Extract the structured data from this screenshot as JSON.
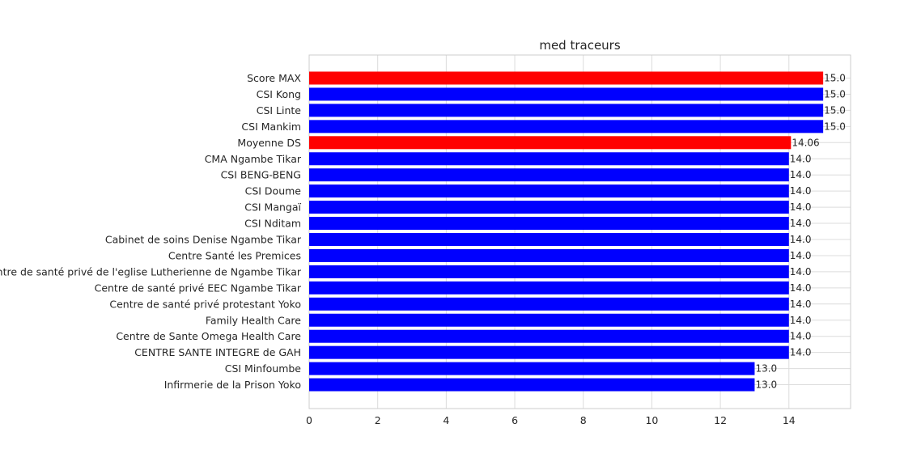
{
  "chart_data": {
    "type": "bar",
    "orientation": "horizontal",
    "title": "med traceurs",
    "xlabel": "",
    "ylabel": "",
    "xlim": [
      0,
      15.8
    ],
    "xticks": [
      0,
      2,
      4,
      6,
      8,
      10,
      12,
      14
    ],
    "grid": true,
    "colors": {
      "highlight": "#ff0000",
      "default": "#0000ff"
    },
    "categories": [
      "Score MAX",
      "CSI Kong",
      "CSI Linte",
      "CSI Mankim",
      "Moyenne DS",
      "CMA Ngambe Tikar",
      "CSI BENG-BENG",
      "CSI Doume",
      "CSI Mangaï",
      "CSI Nditam",
      "Cabinet de soins Denise Ngambe Tikar",
      "Centre Santé les Premices",
      "Centre de santé privé  de l'eglise Lutherienne de Ngambe Tikar",
      "Centre de santé privé EEC Ngambe Tikar",
      "Centre de santé privé protestant Yoko",
      "Family Health Care",
      "Centre de Sante Omega Health  Care",
      "CENTRE SANTE INTEGRE  de GAH",
      "CSI Minfoumbe",
      "Infirmerie de la Prison Yoko"
    ],
    "values": [
      15.0,
      15.0,
      15.0,
      15.0,
      14.06,
      14.0,
      14.0,
      14.0,
      14.0,
      14.0,
      14.0,
      14.0,
      14.0,
      14.0,
      14.0,
      14.0,
      14.0,
      14.0,
      13.0,
      13.0
    ],
    "value_labels": [
      "15.0",
      "15.0",
      "15.0",
      "15.0",
      "14.06",
      "14.0",
      "14.0",
      "14.0",
      "14.0",
      "14.0",
      "14.0",
      "14.0",
      "14.0",
      "14.0",
      "14.0",
      "14.0",
      "14.0",
      "14.0",
      "13.0",
      "13.0"
    ],
    "bar_colors": [
      "#ff0000",
      "#0000ff",
      "#0000ff",
      "#0000ff",
      "#ff0000",
      "#0000ff",
      "#0000ff",
      "#0000ff",
      "#0000ff",
      "#0000ff",
      "#0000ff",
      "#0000ff",
      "#0000ff",
      "#0000ff",
      "#0000ff",
      "#0000ff",
      "#0000ff",
      "#0000ff",
      "#0000ff",
      "#0000ff"
    ]
  }
}
